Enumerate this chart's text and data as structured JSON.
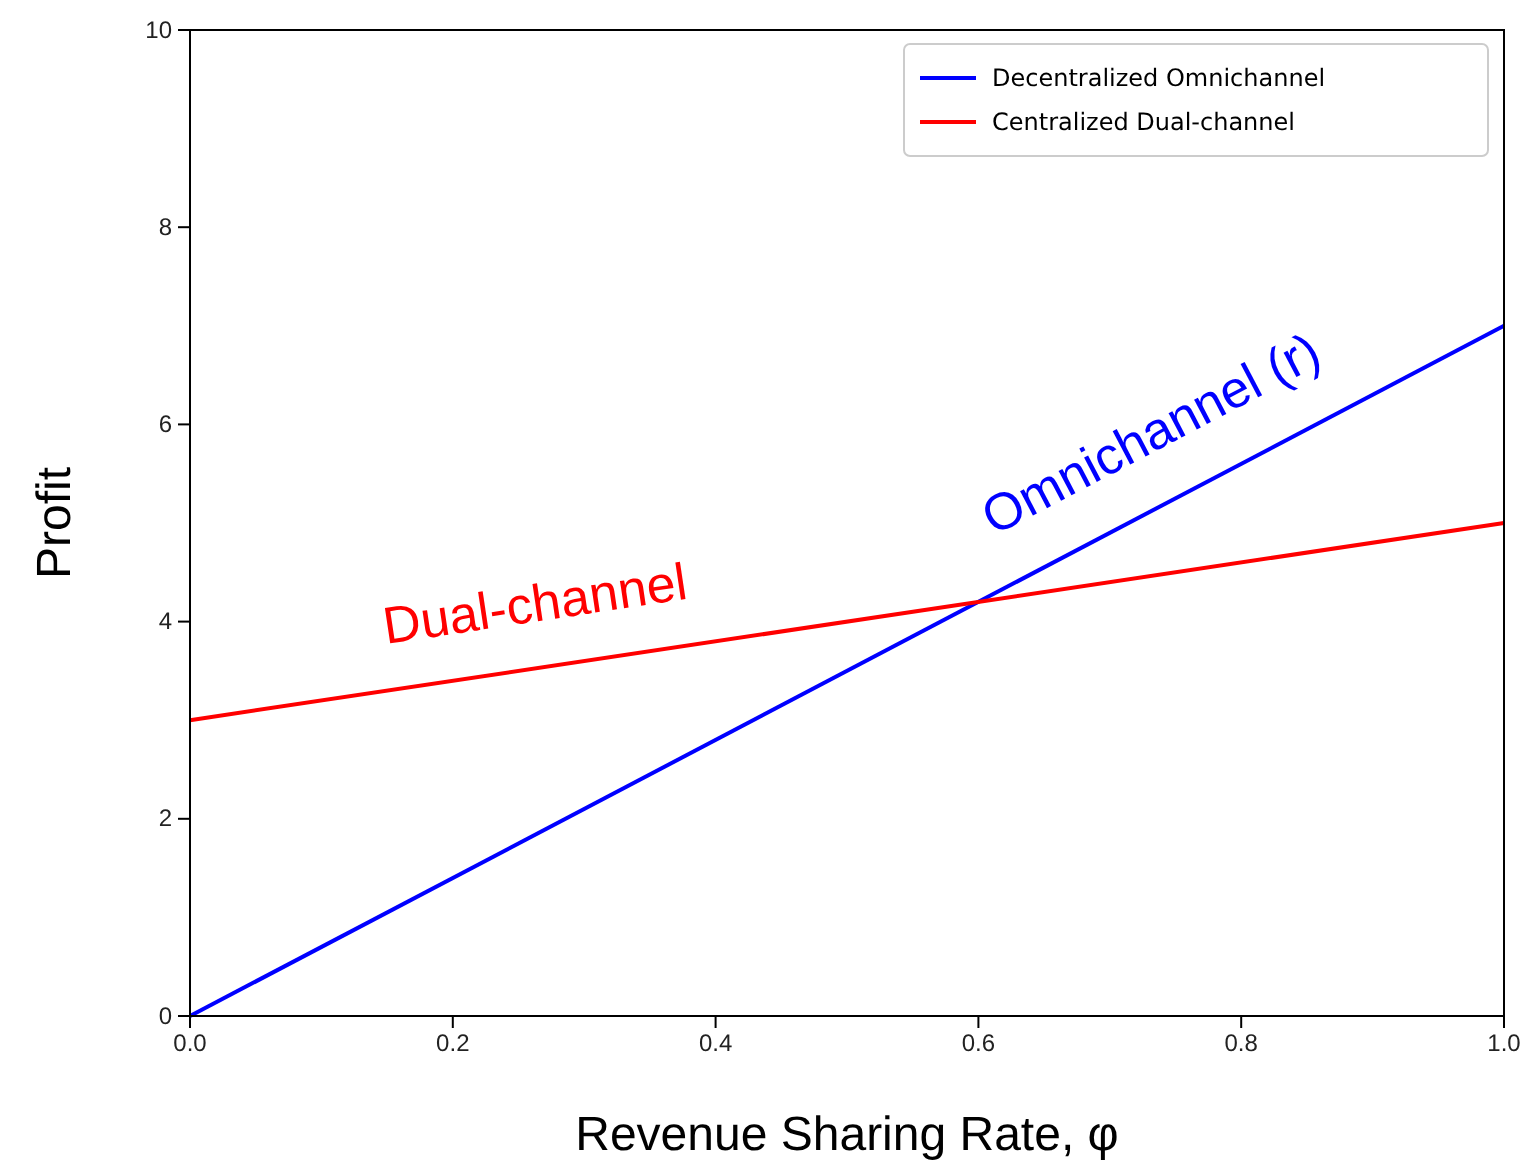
{
  "chart_data": {
    "type": "line",
    "xlabel": "Revenue Sharing Rate, φ",
    "ylabel": "Profit",
    "x": [
      0,
      1
    ],
    "series": [
      {
        "name": "Decentralized Omnichannel",
        "color": "#0000ff",
        "values": [
          0,
          7
        ]
      },
      {
        "name": "Centralized Dual-channel",
        "color": "#ff0000",
        "values": [
          3,
          5
        ]
      }
    ],
    "xlim": [
      0,
      1
    ],
    "ylim": [
      0,
      10
    ],
    "xticks": [
      {
        "value": 0,
        "label": "0.0"
      },
      {
        "value": 0.2,
        "label": "0.2"
      },
      {
        "value": 0.4,
        "label": "0.4"
      },
      {
        "value": 0.6,
        "label": "0.6"
      },
      {
        "value": 0.8,
        "label": "0.8"
      },
      {
        "value": 1,
        "label": "1.0"
      }
    ],
    "yticks": [
      0,
      2,
      4,
      6,
      8,
      10
    ],
    "legend": "top right",
    "grid": false,
    "marker": "none",
    "line_style": "solid",
    "annotations": [
      "Omnichannel (r)",
      "Dual-channel"
    ]
  }
}
